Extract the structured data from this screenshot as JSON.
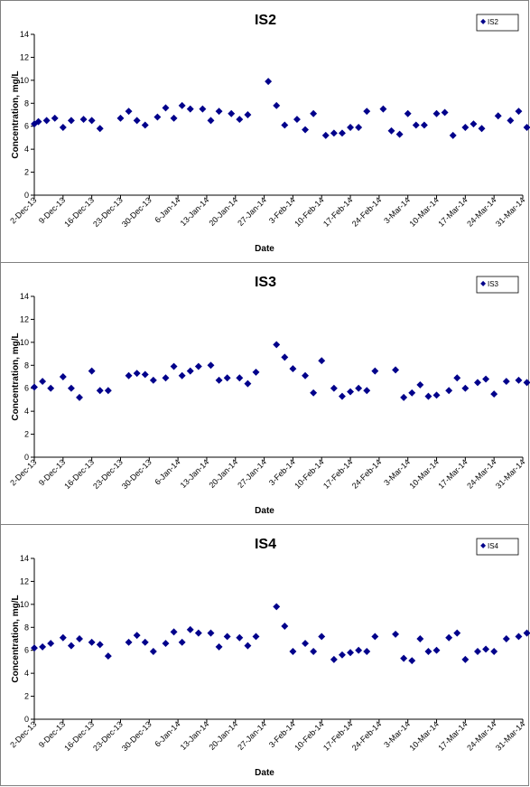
{
  "chart_data": [
    {
      "type": "scatter",
      "title": "IS2",
      "xlabel": "Date",
      "ylabel": "Concentration, mg/L",
      "ylim": [
        0,
        14
      ],
      "y_ticks": [
        0,
        2,
        4,
        6,
        8,
        10,
        12,
        14
      ],
      "x_ticks": [
        "2-Dec-13",
        "9-Dec-13",
        "16-Dec-13",
        "23-Dec-13",
        "30-Dec-13",
        "6-Jan-14",
        "13-Jan-14",
        "20-Jan-14",
        "27-Jan-14",
        "3-Feb-14",
        "10-Feb-14",
        "17-Feb-14",
        "24-Feb-14",
        "3-Mar-14",
        "10-Mar-14",
        "17-Mar-14",
        "24-Mar-14",
        "31-Mar-14"
      ],
      "x_range": [
        "2-Dec-13",
        "31-Mar-14"
      ],
      "legend": "top-right",
      "marker_color": "#00008b",
      "series": [
        {
          "name": "IS2",
          "points": [
            [
              "2-Dec-13",
              6.2
            ],
            [
              "3-Dec-13",
              6.4
            ],
            [
              "5-Dec-13",
              6.5
            ],
            [
              "7-Dec-13",
              6.7
            ],
            [
              "9-Dec-13",
              5.9
            ],
            [
              "11-Dec-13",
              6.5
            ],
            [
              "14-Dec-13",
              6.6
            ],
            [
              "16-Dec-13",
              6.5
            ],
            [
              "18-Dec-13",
              5.8
            ],
            [
              "23-Dec-13",
              6.7
            ],
            [
              "25-Dec-13",
              7.3
            ],
            [
              "27-Dec-13",
              6.5
            ],
            [
              "29-Dec-13",
              6.1
            ],
            [
              "1-Jan-14",
              6.8
            ],
            [
              "3-Jan-14",
              7.6
            ],
            [
              "5-Jan-14",
              6.7
            ],
            [
              "7-Jan-14",
              7.8
            ],
            [
              "9-Jan-14",
              7.5
            ],
            [
              "12-Jan-14",
              7.5
            ],
            [
              "14-Jan-14",
              6.5
            ],
            [
              "16-Jan-14",
              7.3
            ],
            [
              "19-Jan-14",
              7.1
            ],
            [
              "21-Jan-14",
              6.6
            ],
            [
              "23-Jan-14",
              7.0
            ],
            [
              "28-Jan-14",
              9.9
            ],
            [
              "30-Jan-14",
              7.8
            ],
            [
              "1-Feb-14",
              6.1
            ],
            [
              "4-Feb-14",
              6.6
            ],
            [
              "6-Feb-14",
              5.7
            ],
            [
              "8-Feb-14",
              7.1
            ],
            [
              "11-Feb-14",
              5.2
            ],
            [
              "13-Feb-14",
              5.4
            ],
            [
              "15-Feb-14",
              5.4
            ],
            [
              "17-Feb-14",
              5.9
            ],
            [
              "19-Feb-14",
              5.9
            ],
            [
              "21-Feb-14",
              7.3
            ],
            [
              "25-Feb-14",
              7.5
            ],
            [
              "27-Feb-14",
              5.6
            ],
            [
              "1-Mar-14",
              5.3
            ],
            [
              "3-Mar-14",
              7.1
            ],
            [
              "5-Mar-14",
              6.1
            ],
            [
              "7-Mar-14",
              6.1
            ],
            [
              "10-Mar-14",
              7.1
            ],
            [
              "12-Mar-14",
              7.2
            ],
            [
              "14-Mar-14",
              5.2
            ],
            [
              "17-Mar-14",
              5.9
            ],
            [
              "19-Mar-14",
              6.2
            ],
            [
              "21-Mar-14",
              5.8
            ],
            [
              "25-Mar-14",
              6.9
            ],
            [
              "28-Mar-14",
              6.5
            ],
            [
              "30-Mar-14",
              7.3
            ],
            [
              "1-Apr-14",
              5.9
            ]
          ]
        }
      ]
    },
    {
      "type": "scatter",
      "title": "IS3",
      "xlabel": "Date",
      "ylabel": "Concentration, mg/L",
      "ylim": [
        0,
        14
      ],
      "y_ticks": [
        0,
        2,
        4,
        6,
        8,
        10,
        12,
        14
      ],
      "x_ticks": [
        "2-Dec-13",
        "9-Dec-13",
        "16-Dec-13",
        "23-Dec-13",
        "30-Dec-13",
        "6-Jan-14",
        "13-Jan-14",
        "20-Jan-14",
        "27-Jan-14",
        "3-Feb-14",
        "10-Feb-14",
        "17-Feb-14",
        "24-Feb-14",
        "3-Mar-14",
        "10-Mar-14",
        "17-Mar-14",
        "24-Mar-14",
        "31-Mar-14"
      ],
      "x_range": [
        "2-Dec-13",
        "31-Mar-14"
      ],
      "legend": "top-right",
      "marker_color": "#00008b",
      "series": [
        {
          "name": "IS3",
          "points": [
            [
              "2-Dec-13",
              6.1
            ],
            [
              "4-Dec-13",
              6.6
            ],
            [
              "6-Dec-13",
              6.0
            ],
            [
              "9-Dec-13",
              7.0
            ],
            [
              "11-Dec-13",
              6.0
            ],
            [
              "13-Dec-13",
              5.2
            ],
            [
              "16-Dec-13",
              7.5
            ],
            [
              "18-Dec-13",
              5.8
            ],
            [
              "20-Dec-13",
              5.8
            ],
            [
              "25-Dec-13",
              7.1
            ],
            [
              "27-Dec-13",
              7.3
            ],
            [
              "29-Dec-13",
              7.2
            ],
            [
              "31-Dec-13",
              6.7
            ],
            [
              "3-Jan-14",
              6.9
            ],
            [
              "5-Jan-14",
              7.9
            ],
            [
              "7-Jan-14",
              7.1
            ],
            [
              "9-Jan-14",
              7.5
            ],
            [
              "11-Jan-14",
              7.9
            ],
            [
              "14-Jan-14",
              8.0
            ],
            [
              "16-Jan-14",
              6.7
            ],
            [
              "18-Jan-14",
              6.9
            ],
            [
              "21-Jan-14",
              6.9
            ],
            [
              "23-Jan-14",
              6.4
            ],
            [
              "25-Jan-14",
              7.4
            ],
            [
              "30-Jan-14",
              9.8
            ],
            [
              "1-Feb-14",
              8.7
            ],
            [
              "3-Feb-14",
              7.7
            ],
            [
              "6-Feb-14",
              7.1
            ],
            [
              "8-Feb-14",
              5.6
            ],
            [
              "10-Feb-14",
              8.4
            ],
            [
              "13-Feb-14",
              6.0
            ],
            [
              "15-Feb-14",
              5.3
            ],
            [
              "17-Feb-14",
              5.7
            ],
            [
              "19-Feb-14",
              6.0
            ],
            [
              "21-Feb-14",
              5.8
            ],
            [
              "23-Feb-14",
              7.5
            ],
            [
              "28-Feb-14",
              7.6
            ],
            [
              "2-Mar-14",
              5.2
            ],
            [
              "4-Mar-14",
              5.6
            ],
            [
              "6-Mar-14",
              6.3
            ],
            [
              "8-Mar-14",
              5.3
            ],
            [
              "10-Mar-14",
              5.4
            ],
            [
              "13-Mar-14",
              5.8
            ],
            [
              "15-Mar-14",
              6.9
            ],
            [
              "17-Mar-14",
              6.0
            ],
            [
              "20-Mar-14",
              6.5
            ],
            [
              "22-Mar-14",
              6.8
            ],
            [
              "24-Mar-14",
              5.5
            ],
            [
              "27-Mar-14",
              6.6
            ],
            [
              "30-Mar-14",
              6.7
            ],
            [
              "1-Apr-14",
              6.5
            ],
            [
              "3-Apr-14",
              5.4
            ]
          ]
        }
      ]
    },
    {
      "type": "scatter",
      "title": "IS4",
      "xlabel": "Date",
      "ylabel": "Concentration, mg/L",
      "ylim": [
        0,
        14
      ],
      "y_ticks": [
        0,
        2,
        4,
        6,
        8,
        10,
        12,
        14
      ],
      "x_ticks": [
        "2-Dec-13",
        "9-Dec-13",
        "16-Dec-13",
        "23-Dec-13",
        "30-Dec-13",
        "6-Jan-14",
        "13-Jan-14",
        "20-Jan-14",
        "27-Jan-14",
        "3-Feb-14",
        "10-Feb-14",
        "17-Feb-14",
        "24-Feb-14",
        "3-Mar-14",
        "10-Mar-14",
        "17-Mar-14",
        "24-Mar-14",
        "31-Mar-14"
      ],
      "x_range": [
        "2-Dec-13",
        "31-Mar-14"
      ],
      "legend": "top-right",
      "marker_color": "#00008b",
      "series": [
        {
          "name": "IS4",
          "points": [
            [
              "2-Dec-13",
              6.2
            ],
            [
              "4-Dec-13",
              6.3
            ],
            [
              "6-Dec-13",
              6.6
            ],
            [
              "9-Dec-13",
              7.1
            ],
            [
              "11-Dec-13",
              6.4
            ],
            [
              "13-Dec-13",
              7.0
            ],
            [
              "16-Dec-13",
              6.7
            ],
            [
              "18-Dec-13",
              6.5
            ],
            [
              "20-Dec-13",
              5.5
            ],
            [
              "25-Dec-13",
              6.7
            ],
            [
              "27-Dec-13",
              7.3
            ],
            [
              "29-Dec-13",
              6.7
            ],
            [
              "31-Dec-13",
              5.9
            ],
            [
              "3-Jan-14",
              6.6
            ],
            [
              "5-Jan-14",
              7.6
            ],
            [
              "7-Jan-14",
              6.7
            ],
            [
              "9-Jan-14",
              7.8
            ],
            [
              "11-Jan-14",
              7.5
            ],
            [
              "14-Jan-14",
              7.5
            ],
            [
              "16-Jan-14",
              6.3
            ],
            [
              "18-Jan-14",
              7.2
            ],
            [
              "21-Jan-14",
              7.1
            ],
            [
              "23-Jan-14",
              6.4
            ],
            [
              "25-Jan-14",
              7.2
            ],
            [
              "30-Jan-14",
              9.8
            ],
            [
              "1-Feb-14",
              8.1
            ],
            [
              "3-Feb-14",
              5.9
            ],
            [
              "6-Feb-14",
              6.6
            ],
            [
              "8-Feb-14",
              5.9
            ],
            [
              "10-Feb-14",
              7.2
            ],
            [
              "13-Feb-14",
              5.2
            ],
            [
              "15-Feb-14",
              5.6
            ],
            [
              "17-Feb-14",
              5.8
            ],
            [
              "19-Feb-14",
              6.0
            ],
            [
              "21-Feb-14",
              5.9
            ],
            [
              "23-Feb-14",
              7.2
            ],
            [
              "28-Feb-14",
              7.4
            ],
            [
              "2-Mar-14",
              5.3
            ],
            [
              "4-Mar-14",
              5.1
            ],
            [
              "6-Mar-14",
              7.0
            ],
            [
              "8-Mar-14",
              5.9
            ],
            [
              "10-Mar-14",
              6.0
            ],
            [
              "13-Mar-14",
              7.1
            ],
            [
              "15-Mar-14",
              7.5
            ],
            [
              "17-Mar-14",
              5.2
            ],
            [
              "20-Mar-14",
              5.9
            ],
            [
              "22-Mar-14",
              6.1
            ],
            [
              "24-Mar-14",
              5.9
            ],
            [
              "27-Mar-14",
              7.0
            ],
            [
              "30-Mar-14",
              7.2
            ],
            [
              "1-Apr-14",
              7.5
            ],
            [
              "3-Apr-14",
              5.9
            ]
          ]
        }
      ]
    }
  ]
}
